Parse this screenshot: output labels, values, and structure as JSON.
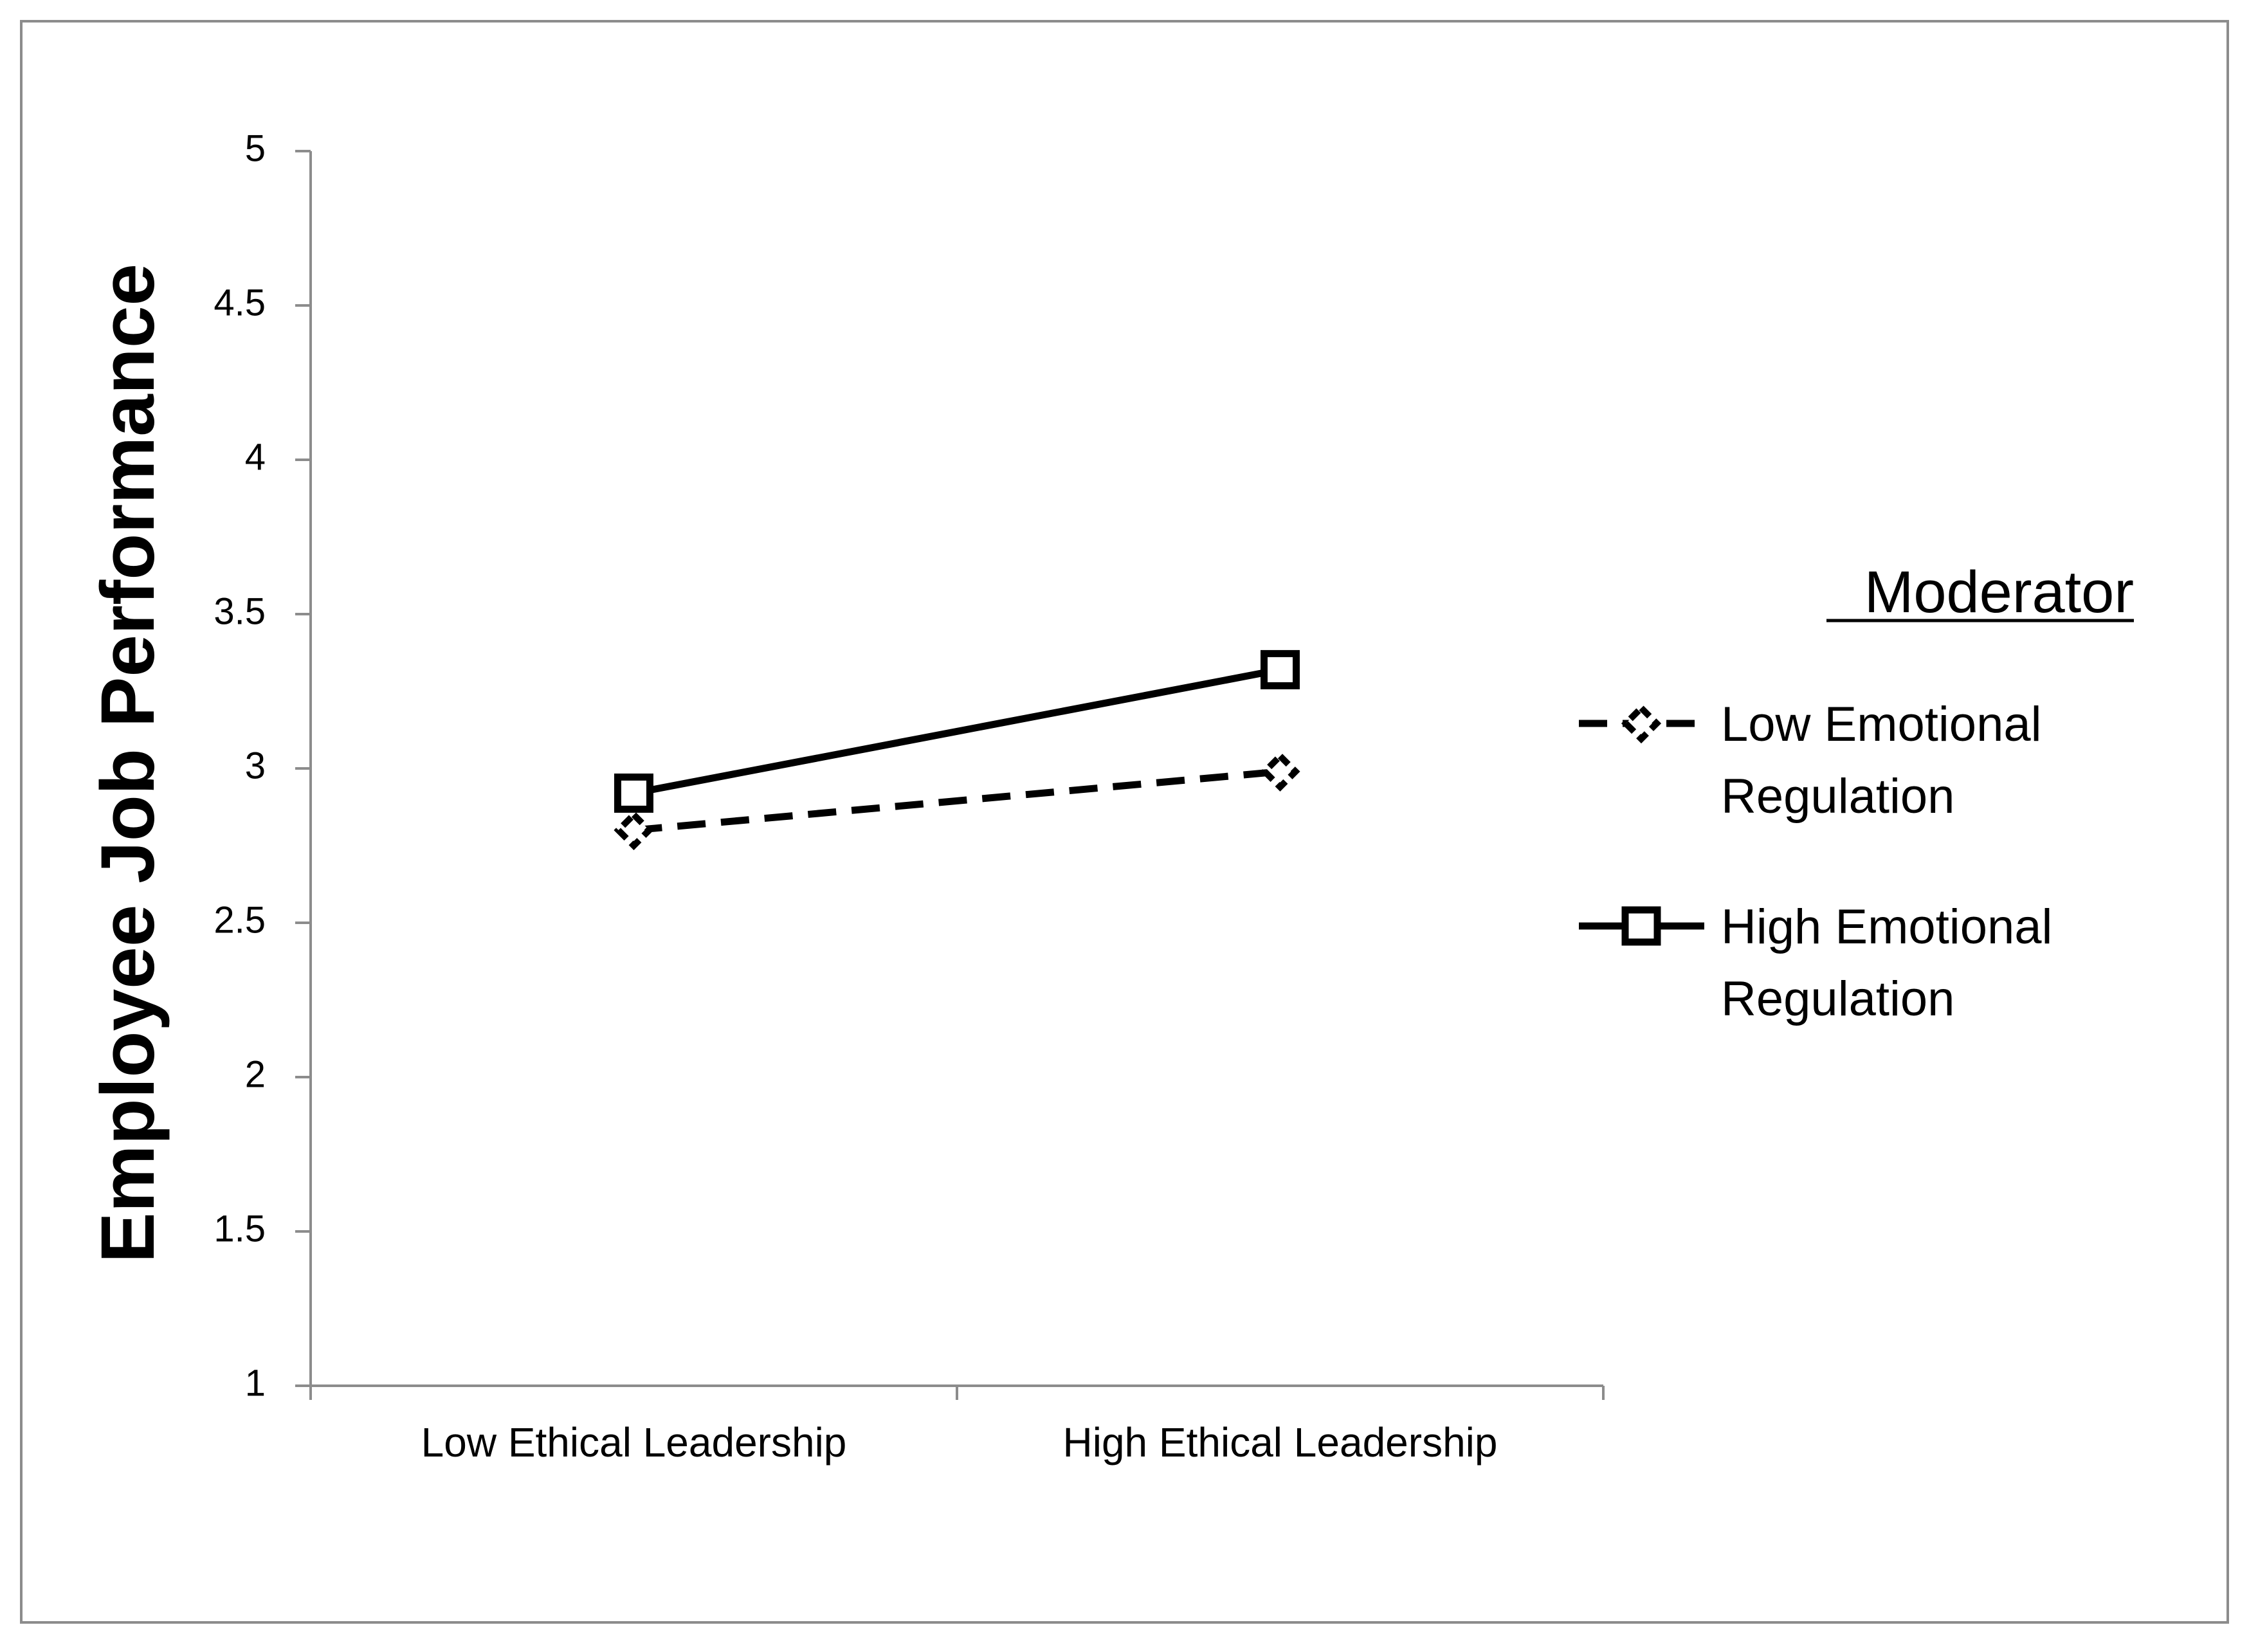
{
  "chart_data": {
    "type": "line",
    "title": "",
    "xlabel": "",
    "ylabel": "Employee Job Performance",
    "categories": [
      "Low Ethical Leadership",
      "High Ethical Leadership"
    ],
    "ylim": [
      1,
      5
    ],
    "yticks": [
      "1",
      "1.5",
      "2",
      "2.5",
      "3",
      "3.5",
      "4",
      "4.5",
      "5"
    ],
    "grid": false,
    "legend": {
      "title": "Moderator",
      "placement": "right"
    },
    "series": [
      {
        "name": "Low Emotional Regulation",
        "name_lines": [
          "Low Emotional",
          "Regulation"
        ],
        "values": [
          2.8,
          2.99
        ],
        "line_style": "dashed",
        "marker": "diamond",
        "color": "#000000"
      },
      {
        "name": "High Emotional Regulation",
        "name_lines": [
          "High Emotional",
          "Regulation"
        ],
        "values": [
          2.92,
          3.32
        ],
        "line_style": "solid",
        "marker": "square",
        "color": "#000000"
      }
    ]
  }
}
